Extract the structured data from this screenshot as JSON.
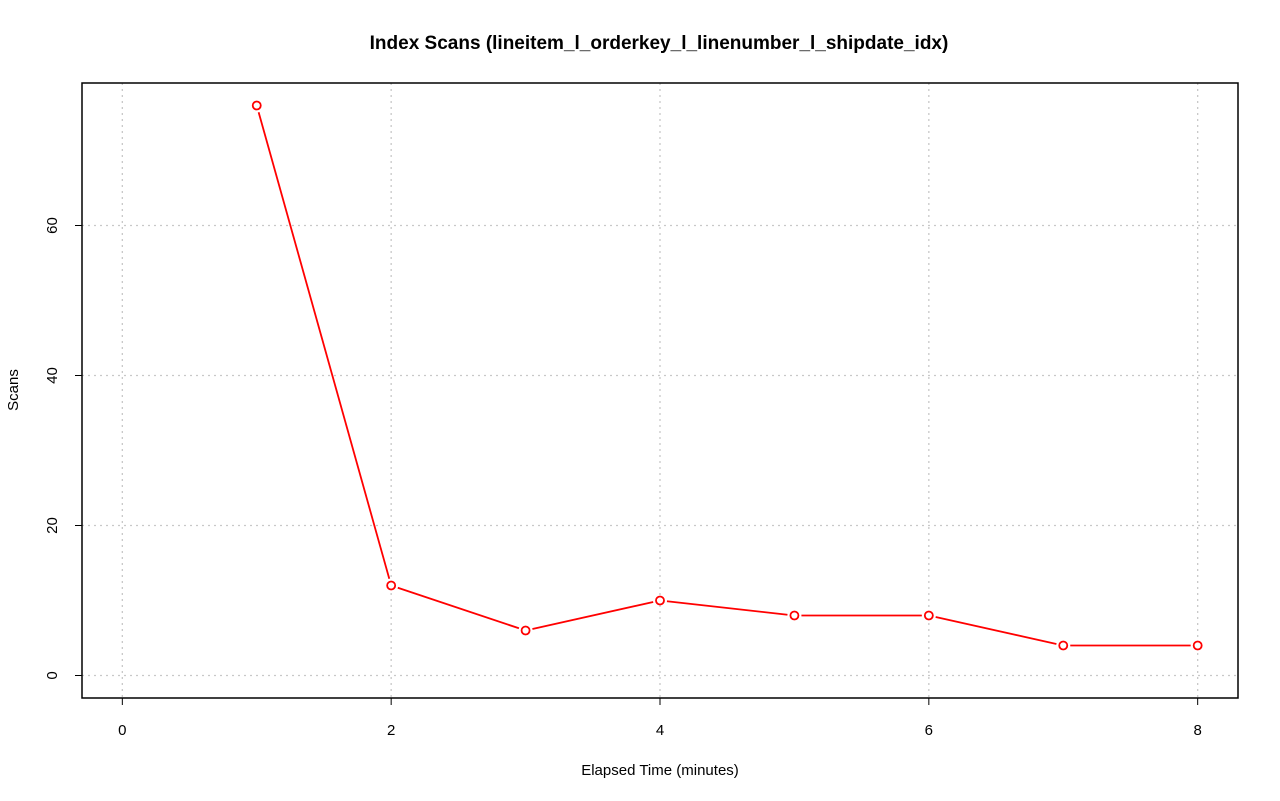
{
  "chart_data": {
    "type": "line",
    "title": "Index Scans (lineitem_l_orderkey_l_linenumber_l_shipdate_idx)",
    "xlabel": "Elapsed Time (minutes)",
    "ylabel": "Scans",
    "xlim": [
      -0.3,
      8.3
    ],
    "ylim": [
      -3,
      79
    ],
    "x_ticks": [
      0,
      2,
      4,
      6,
      8
    ],
    "y_ticks": [
      0,
      20,
      40,
      60
    ],
    "grid": true,
    "series": [
      {
        "color": "#ff0000",
        "x": [
          1,
          2,
          3,
          4,
          5,
          6,
          7,
          8
        ],
        "y": [
          76,
          12,
          6,
          10,
          8,
          8,
          4,
          4
        ]
      }
    ]
  }
}
